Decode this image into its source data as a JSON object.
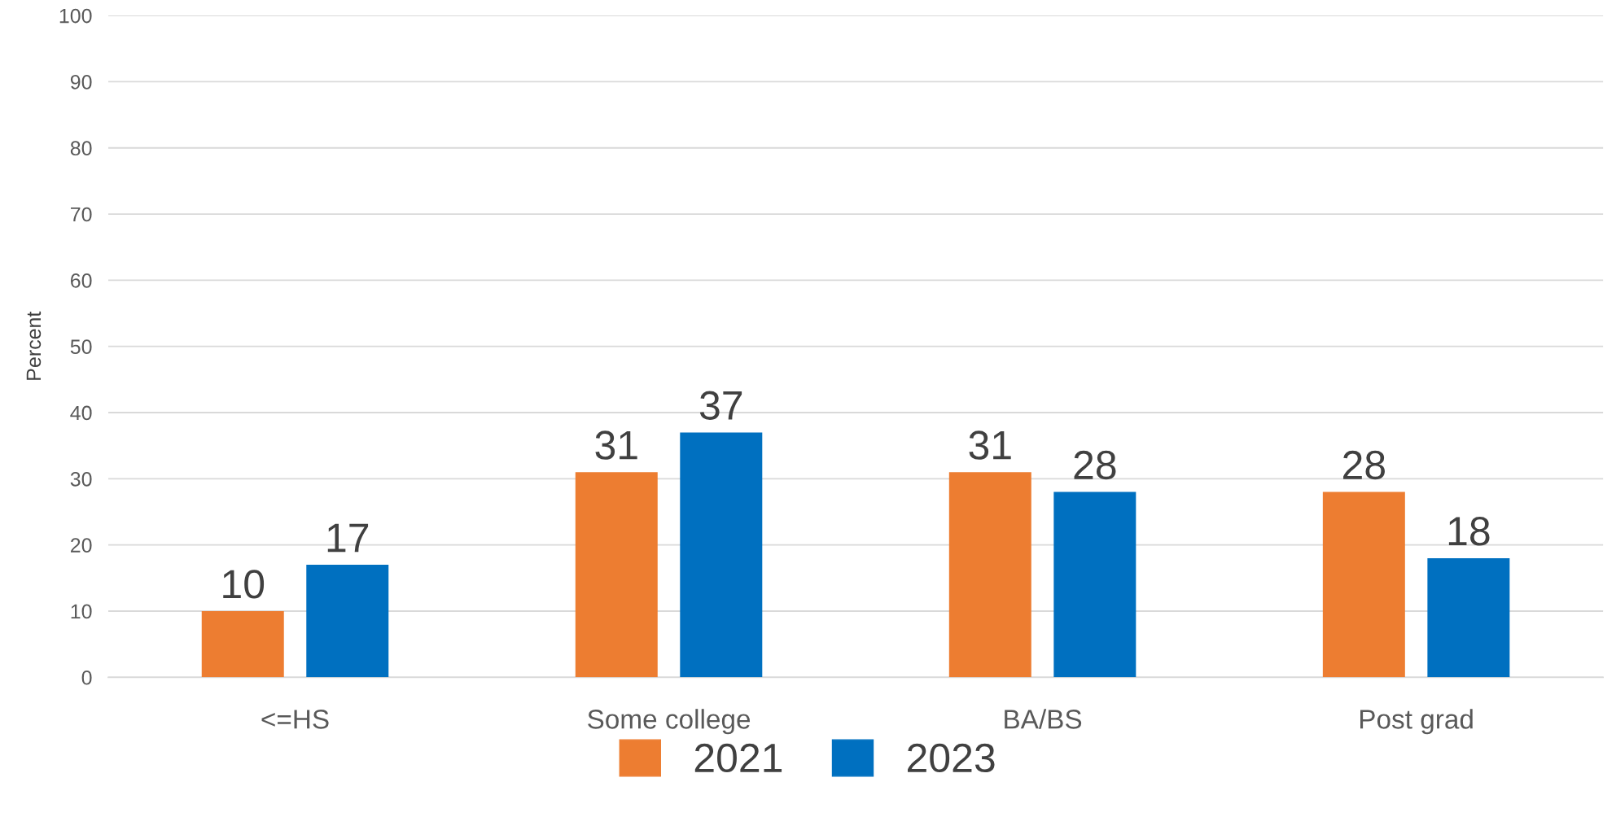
{
  "chart_data": {
    "type": "bar",
    "ylabel": "Percent",
    "categories": [
      "<=HS",
      "Some college",
      "BA/BS",
      "Post grad"
    ],
    "series": [
      {
        "name": "2021",
        "color": "#ed7d31",
        "values": [
          10,
          31,
          31,
          28
        ]
      },
      {
        "name": "2023",
        "color": "#0070c0",
        "values": [
          17,
          37,
          28,
          18
        ]
      }
    ],
    "ylim": [
      0,
      100
    ],
    "yticks": [
      0,
      10,
      20,
      30,
      40,
      50,
      60,
      70,
      80,
      90,
      100
    ],
    "grid": "y",
    "legend": "bottom",
    "data_labels": true
  }
}
